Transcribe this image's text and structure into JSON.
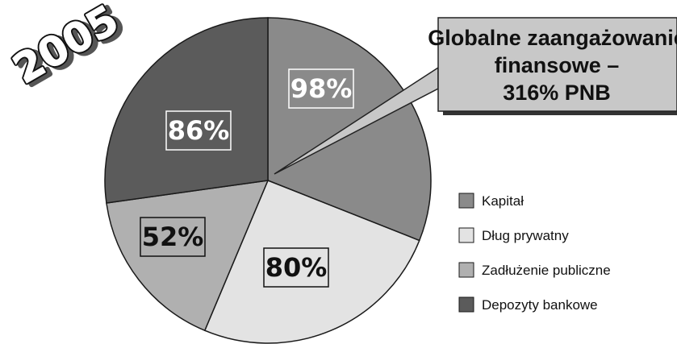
{
  "chart_data": {
    "type": "pie",
    "title": "2005",
    "annotation": [
      "Globalne zaangażowanie",
      "finansowe –",
      "316% PNB"
    ],
    "series": [
      {
        "name": "Kapitał",
        "value": 98,
        "label": "98%",
        "color": "#8a8a8a"
      },
      {
        "name": "Dług prywatny",
        "value": 80,
        "label": "80%",
        "color": "#e3e3e3"
      },
      {
        "name": "Zadłużenie publiczne",
        "value": 52,
        "label": "52%",
        "color": "#b0b0b0"
      },
      {
        "name": "Depozyty bankowe",
        "value": 86,
        "label": "86%",
        "color": "#5b5b5b"
      }
    ],
    "legend_position": "right"
  }
}
